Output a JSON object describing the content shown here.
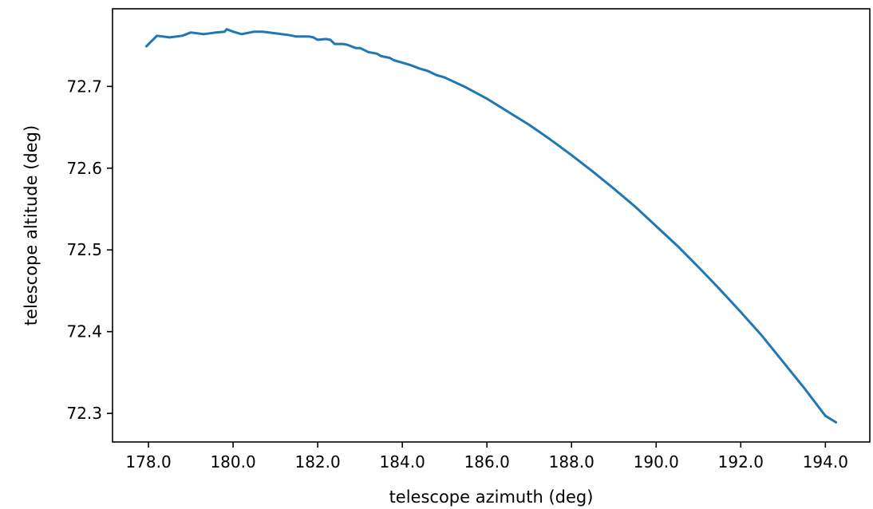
{
  "chart_data": {
    "type": "line",
    "title": "",
    "xlabel": "telescope azimuth (deg)",
    "ylabel": "telescope altitude (deg)",
    "xlim": [
      177.15,
      195.05
    ],
    "ylim": [
      72.265,
      72.795
    ],
    "xticks": [
      178.0,
      180.0,
      182.0,
      184.0,
      186.0,
      188.0,
      190.0,
      192.0,
      194.0
    ],
    "xtick_labels": [
      "178.0",
      "180.0",
      "182.0",
      "184.0",
      "186.0",
      "188.0",
      "190.0",
      "192.0",
      "194.0"
    ],
    "yticks": [
      72.3,
      72.4,
      72.5,
      72.6,
      72.7
    ],
    "ytick_labels": [
      "72.3",
      "72.4",
      "72.5",
      "72.6",
      "72.7"
    ],
    "grid": false,
    "legend": false,
    "color": "#1f77b4",
    "series": [
      {
        "x": [
          177.95,
          178.2,
          178.5,
          178.8,
          179.0,
          179.3,
          179.6,
          179.8,
          179.85,
          180.0,
          180.2,
          180.5,
          180.7,
          181.0,
          181.3,
          181.5,
          181.7,
          181.8,
          181.9,
          182.0,
          182.2,
          182.3,
          182.4,
          182.6,
          182.7,
          182.9,
          183.0,
          183.2,
          183.4,
          183.5,
          183.7,
          183.8,
          184.0,
          184.2,
          184.4,
          184.6,
          184.8,
          185.0,
          185.5,
          186.0,
          186.5,
          187.0,
          187.5,
          188.0,
          188.5,
          189.0,
          189.5,
          190.0,
          190.5,
          191.0,
          191.5,
          192.0,
          192.5,
          193.0,
          193.5,
          194.0,
          194.25
        ],
        "y": [
          72.749,
          72.762,
          72.76,
          72.762,
          72.766,
          72.764,
          72.766,
          72.767,
          72.77,
          72.767,
          72.764,
          72.767,
          72.767,
          72.765,
          72.763,
          72.761,
          72.761,
          72.761,
          72.76,
          72.757,
          72.758,
          72.757,
          72.752,
          72.752,
          72.751,
          72.747,
          72.747,
          72.742,
          72.74,
          72.737,
          72.735,
          72.732,
          72.729,
          72.726,
          72.722,
          72.719,
          72.714,
          72.711,
          72.699,
          72.685,
          72.669,
          72.653,
          72.635,
          72.616,
          72.596,
          72.575,
          72.553,
          72.529,
          72.505,
          72.479,
          72.452,
          72.424,
          72.395,
          72.363,
          72.331,
          72.297,
          72.289
        ]
      }
    ]
  }
}
